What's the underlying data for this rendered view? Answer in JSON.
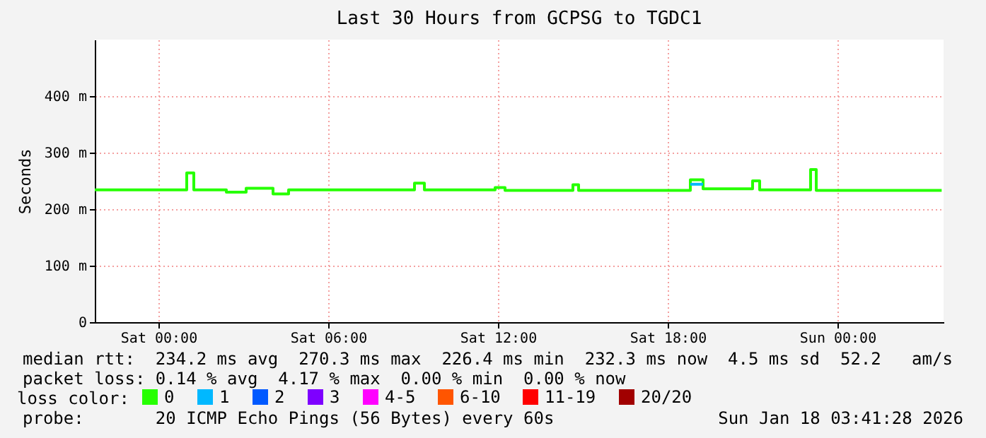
{
  "chart_data": {
    "type": "step",
    "title": "Last 30 Hours from GCPSG to TGDC1",
    "ylabel": "Seconds",
    "legend_title": "loss color:",
    "x": [
      "2026-01-16T21:45",
      "2026-01-17T01:00",
      "2026-01-17T01:15",
      "2026-01-17T02:24",
      "2026-01-17T03:06",
      "2026-01-17T04:03",
      "2026-01-17T04:36",
      "2026-01-17T09:03",
      "2026-01-17T09:24",
      "2026-01-17T11:54",
      "2026-01-17T12:15",
      "2026-01-17T14:39",
      "2026-01-17T14:51",
      "2026-01-17T18:48",
      "2026-01-17T19:15",
      "2026-01-17T21:00",
      "2026-01-17T21:15",
      "2026-01-17T23:03",
      "2026-01-17T23:15",
      "2026-01-18T03:41"
    ],
    "series": [
      {
        "name": "0",
        "color": "#26ff00",
        "values": [
          234,
          264,
          234,
          230,
          237,
          227,
          234,
          246,
          234,
          238,
          233,
          243,
          233,
          252,
          236,
          250,
          234,
          270,
          233,
          233
        ]
      },
      {
        "name": "1",
        "color": "#00b8ff",
        "x": [
          "2026-01-17T18:48",
          "2026-01-17T19:15"
        ],
        "values": [
          244,
          244
        ]
      },
      {
        "name": "2",
        "color": "#0059ff",
        "values": [
          null,
          null,
          null,
          null,
          null,
          null,
          null,
          null,
          null,
          null,
          null,
          null,
          null,
          null,
          null,
          null,
          null,
          null,
          null,
          null
        ]
      },
      {
        "name": "3",
        "color": "#7e00ff",
        "values": [
          null,
          null,
          null,
          null,
          null,
          null,
          null,
          null,
          null,
          null,
          null,
          null,
          null,
          null,
          null,
          null,
          null,
          null,
          null,
          null
        ]
      },
      {
        "name": "4-5",
        "color": "#ff00ff",
        "values": [
          null,
          null,
          null,
          null,
          null,
          null,
          null,
          null,
          null,
          null,
          null,
          null,
          null,
          null,
          null,
          null,
          null,
          null,
          null,
          null
        ]
      },
      {
        "name": "6-10",
        "color": "#ff5500",
        "values": [
          null,
          null,
          null,
          null,
          null,
          null,
          null,
          null,
          null,
          null,
          null,
          null,
          null,
          null,
          null,
          null,
          null,
          null,
          null,
          null
        ]
      },
      {
        "name": "11-19",
        "color": "#ff0000",
        "values": [
          null,
          null,
          null,
          null,
          null,
          null,
          null,
          null,
          null,
          null,
          null,
          null,
          null,
          null,
          null,
          null,
          null,
          null,
          null,
          null
        ]
      },
      {
        "name": "20/20",
        "color": "#a10000",
        "values": [
          null,
          null,
          null,
          null,
          null,
          null,
          null,
          null,
          null,
          null,
          null,
          null,
          null,
          null,
          null,
          null,
          null,
          null,
          null,
          null
        ]
      }
    ],
    "xlim": [
      "2026-01-16T21:45",
      "2026-01-18T03:45"
    ],
    "xticks": [
      {
        "value": "2026-01-17T00:00",
        "label": "Sat 00:00"
      },
      {
        "value": "2026-01-17T06:00",
        "label": "Sat 06:00"
      },
      {
        "value": "2026-01-17T12:00",
        "label": "Sat 12:00"
      },
      {
        "value": "2026-01-17T18:00",
        "label": "Sat 18:00"
      },
      {
        "value": "2026-01-18T00:00",
        "label": "Sun 00:00"
      }
    ],
    "ylim": [
      0,
      500
    ],
    "yticks": [
      0,
      {
        "value": 100,
        "label": "100 m"
      },
      {
        "value": 200,
        "label": "200 m"
      },
      {
        "value": 300,
        "label": "300 m"
      },
      {
        "value": 400,
        "label": "400 m"
      }
    ],
    "grid": true,
    "legend": "bottom",
    "marker": "none",
    "line_style": "solid",
    "annotations": [
      "median rtt:  234.2 ms avg  270.3 ms max  226.4 ms min  232.3 ms now  4.5 ms sd  52.2   am/s",
      "packet loss: 0.14 % avg  4.17 % max  0.00 % min  0.00 % now",
      "probe:       20 ICMP Echo Pings (56 Bytes) every 60s",
      "Sun Jan 18 03:41:28 2026"
    ]
  }
}
